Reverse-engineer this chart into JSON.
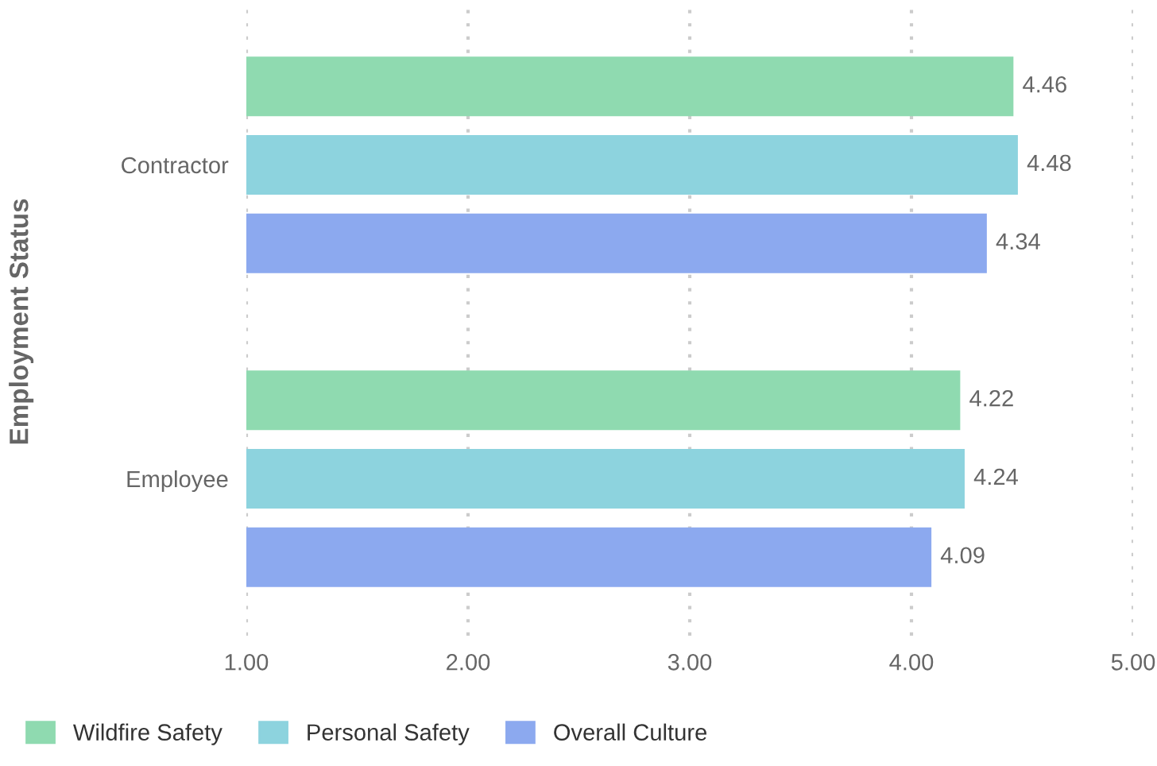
{
  "chart_data": {
    "type": "bar",
    "orientation": "horizontal",
    "ylabel": "Employment Status",
    "categories": [
      "Contractor",
      "Employee"
    ],
    "series": [
      {
        "name": "Wildfire Safety",
        "color": "#8fdab0",
        "values": [
          4.46,
          4.22
        ]
      },
      {
        "name": "Personal Safety",
        "color": "#8dd3de",
        "values": [
          4.48,
          4.24
        ]
      },
      {
        "name": "Overall Culture",
        "color": "#8ca9ef",
        "values": [
          4.34,
          4.09
        ]
      }
    ],
    "xlim": [
      1,
      5
    ],
    "xticks": [
      {
        "value": 1,
        "label": "1.00"
      },
      {
        "value": 2,
        "label": "2.00"
      },
      {
        "value": 3,
        "label": "3.00"
      },
      {
        "value": 4,
        "label": "4.00"
      },
      {
        "value": 5,
        "label": "5.00"
      }
    ],
    "grid": "x",
    "legend": "bottom left",
    "data_labels": true
  }
}
